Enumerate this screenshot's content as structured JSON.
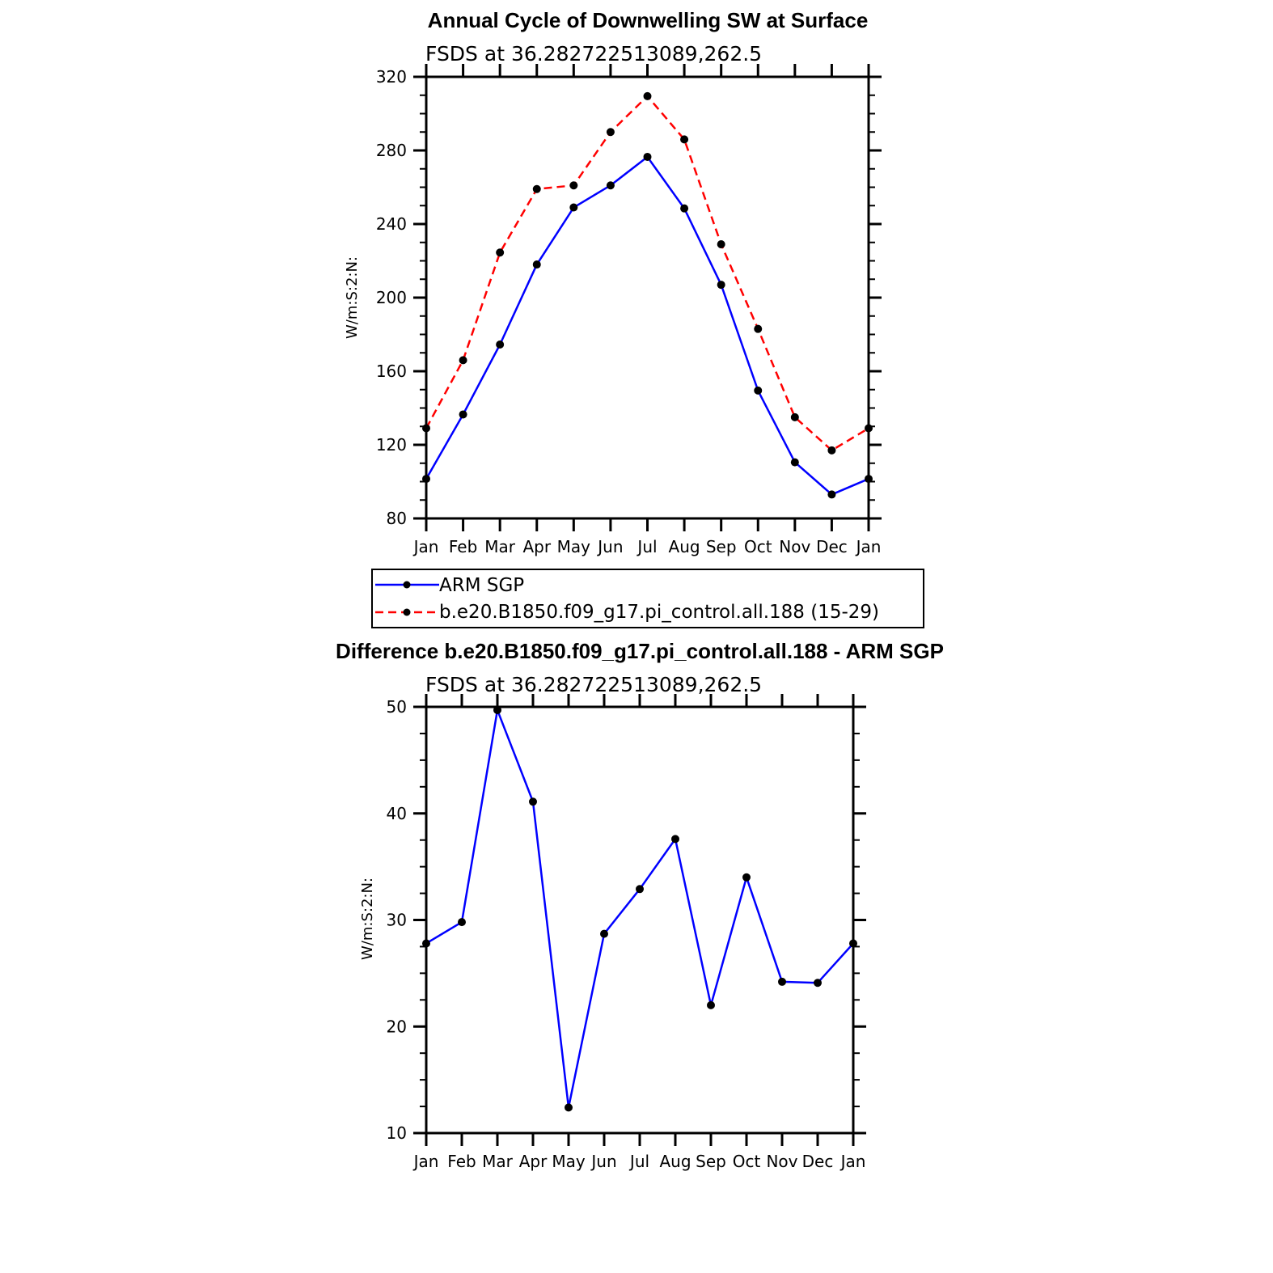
{
  "chart_data": [
    {
      "type": "line",
      "title": "Annual Cycle of Downwelling SW at Surface",
      "subtitle": "FSDS at 36.282722513089,262.5",
      "ylabel": "W/m:S:2:N:",
      "xlabel": "",
      "ylim": [
        80,
        320
      ],
      "yticks": [
        "80",
        "120",
        "160",
        "200",
        "240",
        "280",
        "320"
      ],
      "categories": [
        "Jan",
        "Feb",
        "Mar",
        "Apr",
        "May",
        "Jun",
        "Jul",
        "Aug",
        "Sep",
        "Oct",
        "Nov",
        "Dec",
        "Jan"
      ],
      "series": [
        {
          "name": "ARM SGP",
          "color": "#0000ff",
          "style": "solid",
          "values": [
            101.5,
            136.5,
            174.5,
            218,
            249,
            261,
            276.5,
            248.5,
            207,
            149.5,
            110.5,
            93,
            101.5
          ]
        },
        {
          "name": "b.e20.B1850.f09_g17.pi_control.all.188 (15-29)",
          "color": "#ff0000",
          "style": "dashed",
          "values": [
            129,
            166,
            224.5,
            259,
            261,
            290,
            309.5,
            286,
            229,
            183,
            135,
            117,
            129
          ]
        }
      ],
      "legend": {
        "position": "bottom"
      },
      "grid": false
    },
    {
      "type": "line",
      "title": "Difference b.e20.B1850.f09_g17.pi_control.all.188 - ARM SGP",
      "subtitle": "FSDS at 36.282722513089,262.5",
      "ylabel": "W/m:S:2:N:",
      "xlabel": "",
      "ylim": [
        10,
        50
      ],
      "yticks": [
        "10",
        "20",
        "30",
        "40",
        "50"
      ],
      "categories": [
        "Jan",
        "Feb",
        "Mar",
        "Apr",
        "May",
        "Jun",
        "Jul",
        "Aug",
        "Sep",
        "Oct",
        "Nov",
        "Dec",
        "Jan"
      ],
      "series": [
        {
          "name": "",
          "color": "#0000ff",
          "style": "solid",
          "values": [
            27.8,
            29.8,
            49.7,
            41.1,
            12.4,
            28.7,
            32.9,
            37.6,
            22,
            34,
            24.2,
            24.1,
            27.8
          ]
        }
      ],
      "grid": false
    }
  ]
}
